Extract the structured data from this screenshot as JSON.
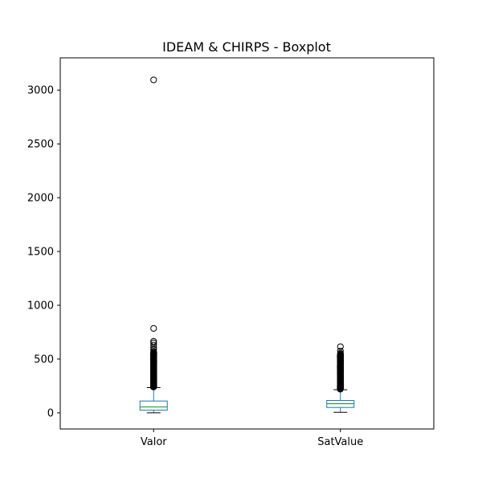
{
  "chart_data": {
    "type": "boxplot",
    "title": "IDEAM & CHIRPS - Boxplot",
    "xlabel": "",
    "ylabel": "",
    "ylim": [
      -150,
      3300
    ],
    "yticks": [
      0,
      500,
      1000,
      1500,
      2000,
      2500,
      3000
    ],
    "grid": false,
    "categories": [
      "Valor",
      "SatValue"
    ],
    "boxes": [
      {
        "name": "Valor",
        "whisker_low": 0,
        "q1": 25,
        "median": 55,
        "q3": 110,
        "whisker_high": 235,
        "outlier_range": [
          240,
          560
        ],
        "outliers": [
          570,
          590,
          610,
          630,
          650,
          665,
          785,
          3095
        ]
      },
      {
        "name": "SatValue",
        "whisker_low": 5,
        "q1": 50,
        "median": 85,
        "q3": 115,
        "whisker_high": 215,
        "outlier_range": [
          220,
          545
        ],
        "outliers": [
          555,
          575,
          615
        ]
      }
    ],
    "colors": {
      "box": "#1f77b4",
      "median": "#2ca02c",
      "whisker": "#1f77b4",
      "cap": "#000000",
      "flier": "#000000"
    }
  }
}
